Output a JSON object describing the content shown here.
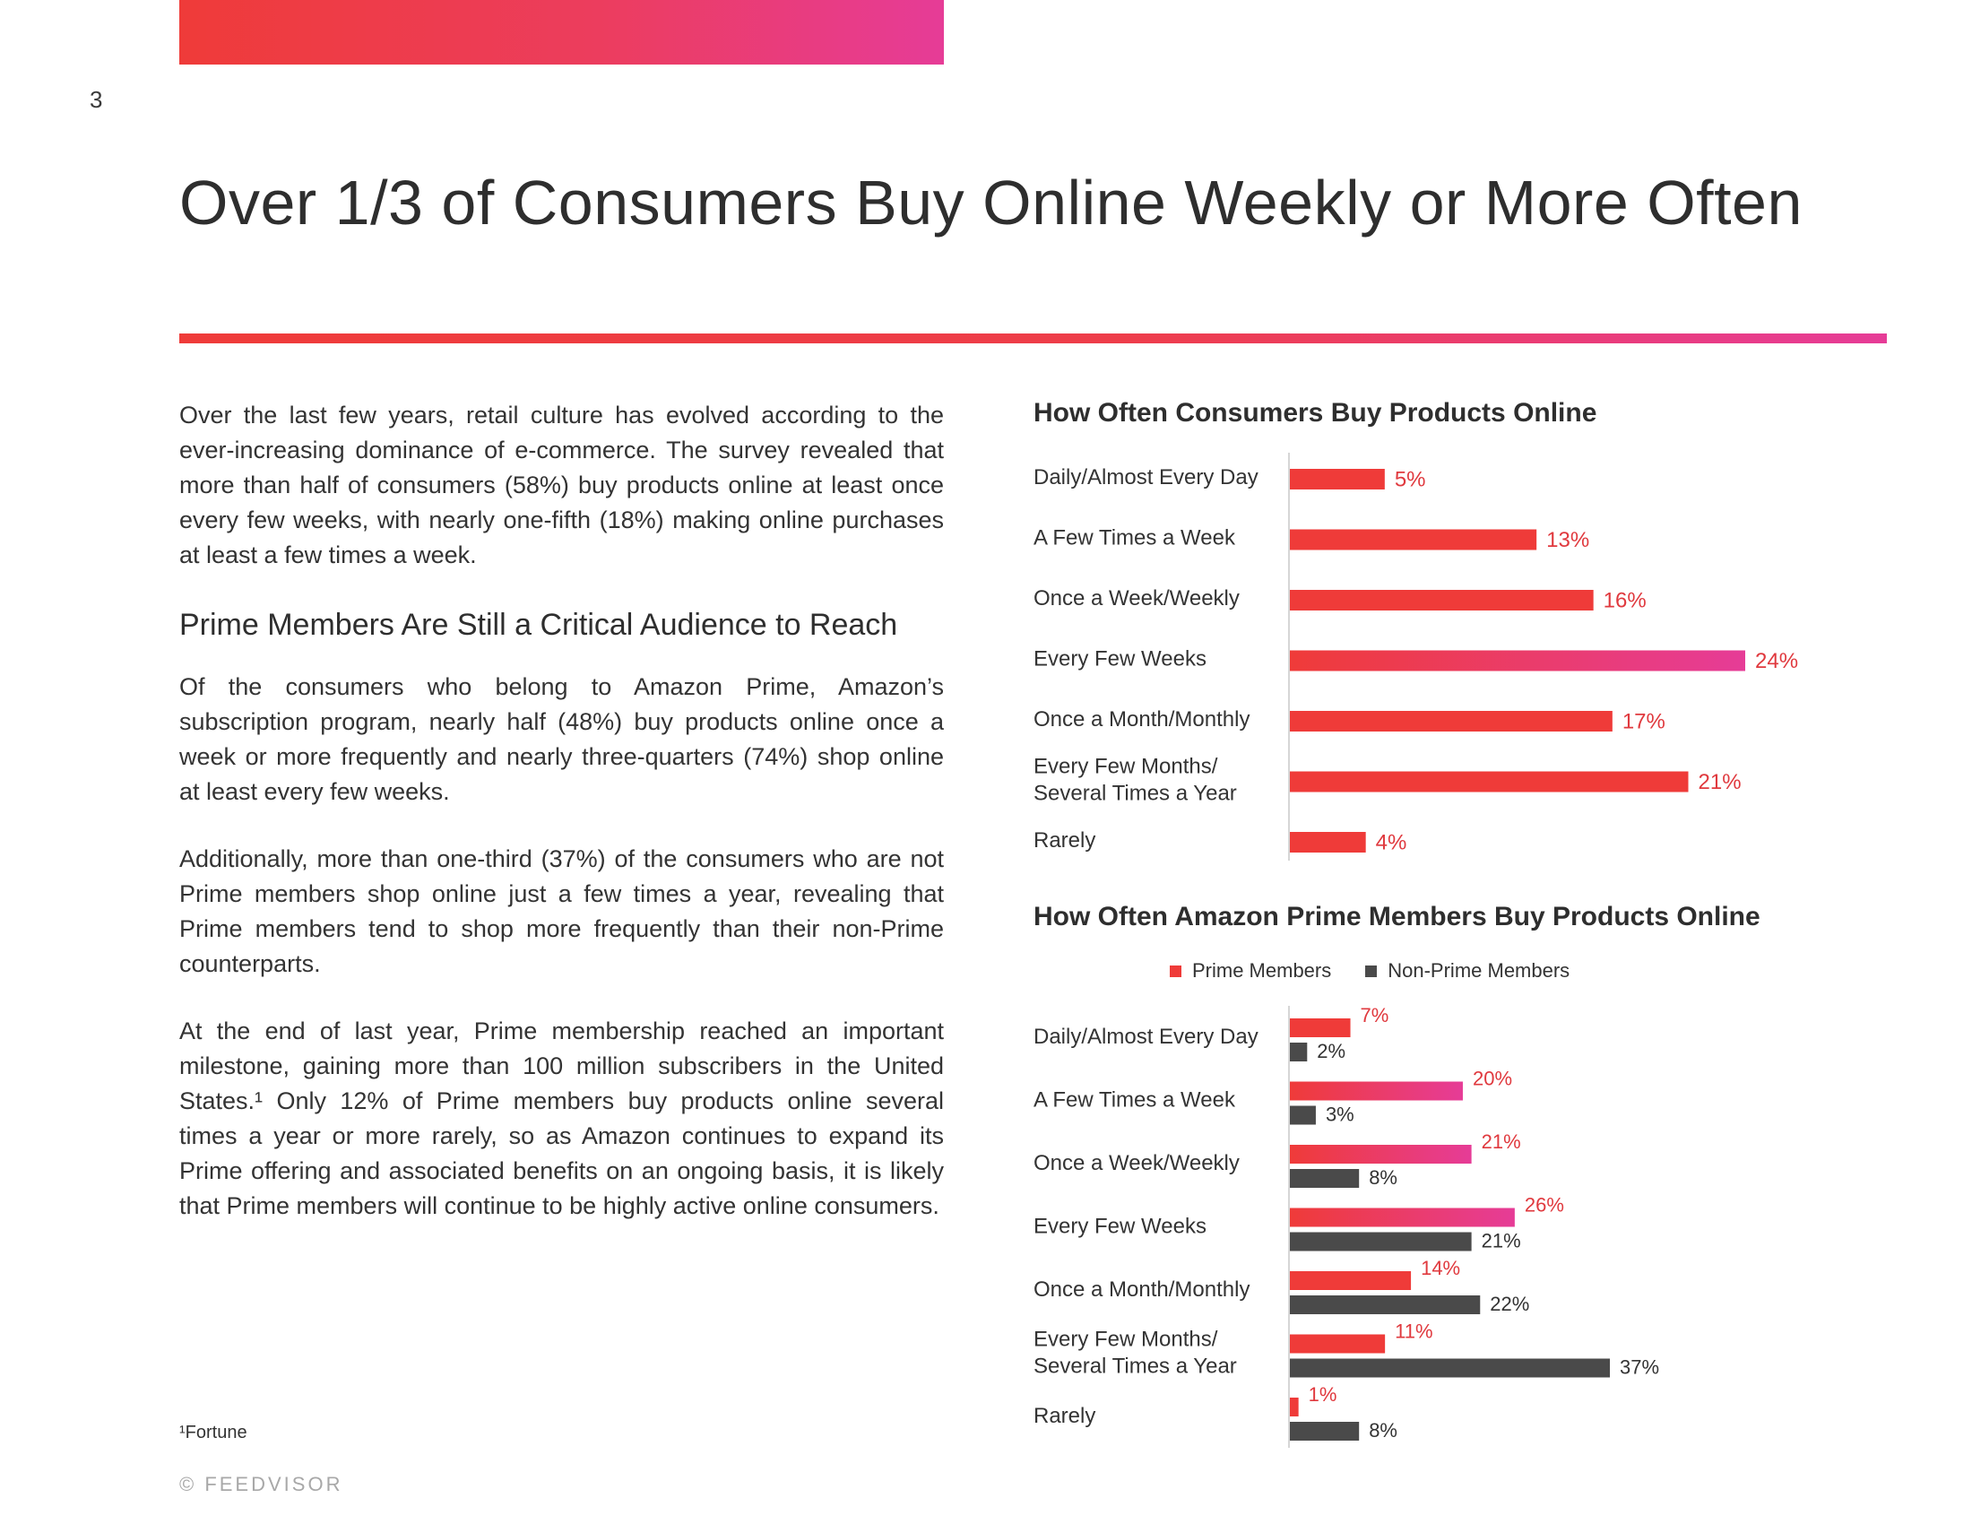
{
  "page_number": "3",
  "title": "Over 1/3 of Consumers Buy Online Weekly or More Often",
  "body": {
    "intro": "Over the last few years, retail culture has evolved according to the ever-increasing dominance of e-commerce. The survey revealed that more than half of consumers (58%) buy products online at least once every few weeks, with nearly one-fifth (18%) making online purchases at least a few times a week.",
    "subheading": "Prime Members Are Still a Critical Audience to Reach",
    "para1": "Of the consumers who belong to Amazon Prime, Amazon’s subscription program, nearly half (48%) buy products online once a week or more frequently and nearly three-quarters (74%) shop online at least every few weeks.",
    "para2": "Additionally, more than one-third (37%) of the consumers who are not Prime members shop online just a few times a year, revealing that Prime members tend to shop more frequently than their non-Prime counterparts.",
    "para3": "At the end of last year, Prime membership reached an important milestone, gaining more than 100 million subscribers in the United States.¹ Only 12% of Prime members buy products online several times a year or more rarely, so as Amazon continues to expand its Prime offering and associated benefits on an ongoing basis, it is likely that Prime members will continue to be highly active online consumers."
  },
  "footnote": "¹Fortune",
  "copyright": "© FEEDVISOR",
  "colors": {
    "accent_red": "#ef3b39",
    "accent_pink": "#e63c97",
    "prime": "#ef3b39",
    "non_prime": "#4a4a4a",
    "label_red": "#e0393e"
  },
  "chart_data": [
    {
      "type": "bar",
      "orientation": "horizontal",
      "title": "How Often Consumers Buy Products Online",
      "categories": [
        "Daily/Almost Every Day",
        "A Few Times a Week",
        "Once a Week/Weekly",
        "Every Few Weeks",
        "Once a Month/Monthly",
        "Every Few Months/\nSeveral Times a Year",
        "Rarely"
      ],
      "series": [
        {
          "values": [
            5,
            13,
            16,
            24,
            17,
            21,
            4
          ],
          "labels": [
            "5%",
            "13%",
            "16%",
            "24%",
            "17%",
            "21%",
            "4%"
          ]
        }
      ]
    },
    {
      "type": "bar",
      "orientation": "horizontal",
      "title": "How Often Amazon Prime Members Buy Products Online",
      "legend": "top",
      "categories": [
        "Daily/Almost Every Day",
        "A Few Times a Week",
        "Once a Week/Weekly",
        "Every Few Weeks",
        "Once a Month/Monthly",
        "Every Few Months/\nSeveral Times a Year",
        "Rarely"
      ],
      "series": [
        {
          "name": "Prime Members",
          "values": [
            7,
            20,
            21,
            26,
            14,
            11,
            1
          ],
          "labels": [
            "7%",
            "20%",
            "21%",
            "26%",
            "14%",
            "11%",
            "1%"
          ]
        },
        {
          "name": "Non-Prime Members",
          "values": [
            2,
            3,
            8,
            21,
            22,
            37,
            8
          ],
          "labels": [
            "2%",
            "3%",
            "8%",
            "21%",
            "22%",
            "37%",
            "8%"
          ]
        }
      ]
    }
  ]
}
